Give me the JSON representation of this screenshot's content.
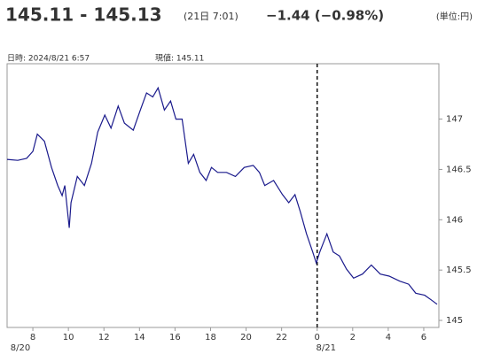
{
  "chart_data": {
    "type": "line",
    "title": "145.11 - 145.13",
    "subtitle": "(21日 7:01)",
    "change": "−1.44 (−0.98%)",
    "change_color": "#1a9a1a",
    "unit": "(単位:円)",
    "info": [
      "日時: 2024/8/21  6:57",
      "現値: 145.11"
    ],
    "date_labels": [
      {
        "value": 7.3,
        "label": "8/20"
      },
      {
        "value": 24.5,
        "label": "8/21"
      }
    ],
    "vline": 24,
    "xlim": [
      6.55,
      30.85
    ],
    "ylim": [
      144.93,
      147.55
    ],
    "xticks": [
      8,
      10,
      12,
      14,
      16,
      18,
      20,
      22,
      {
        "value": 24,
        "label": "0"
      },
      {
        "value": 26,
        "label": "2"
      },
      {
        "value": 28,
        "label": "4"
      },
      {
        "value": 30,
        "label": "6"
      }
    ],
    "yticks": [
      145,
      145.5,
      146,
      146.5,
      147
    ],
    "series": [
      {
        "color": "#1a1a8c",
        "x": [
          6.55,
          7.15,
          7.65,
          8.0,
          8.25,
          8.65,
          9.05,
          9.4,
          9.65,
          9.8,
          10.05,
          10.15,
          10.5,
          10.9,
          11.3,
          11.65,
          12.05,
          12.4,
          12.8,
          13.15,
          13.65,
          14.05,
          14.4,
          14.75,
          15.05,
          15.4,
          15.75,
          16.05,
          16.4,
          16.75,
          17.05,
          17.4,
          17.75,
          18.05,
          18.4,
          18.9,
          19.4,
          19.9,
          20.4,
          20.75,
          21.05,
          21.55,
          22.05,
          22.4,
          22.75,
          23.05,
          23.4,
          23.75,
          23.95,
          24.15,
          24.55,
          24.9,
          25.25,
          25.65,
          26.05,
          26.55,
          27.05,
          27.55,
          28.05,
          28.65,
          29.15,
          29.55,
          30.05,
          30.45,
          30.75
        ],
        "values": [
          146.6,
          146.59,
          146.61,
          146.68,
          146.85,
          146.78,
          146.52,
          146.34,
          146.24,
          146.34,
          145.92,
          146.17,
          146.43,
          146.34,
          146.56,
          146.87,
          147.04,
          146.91,
          147.13,
          146.96,
          146.89,
          147.09,
          147.26,
          147.22,
          147.31,
          147.09,
          147.18,
          147.0,
          147.0,
          146.56,
          146.65,
          146.47,
          146.39,
          146.52,
          146.47,
          146.47,
          146.43,
          146.52,
          146.54,
          146.47,
          146.34,
          146.39,
          146.25,
          146.17,
          146.25,
          146.08,
          145.86,
          145.68,
          145.57,
          145.68,
          145.86,
          145.68,
          145.64,
          145.51,
          145.42,
          145.46,
          145.55,
          145.46,
          145.44,
          145.39,
          145.36,
          145.27,
          145.25,
          145.2,
          145.16
        ]
      }
    ]
  }
}
